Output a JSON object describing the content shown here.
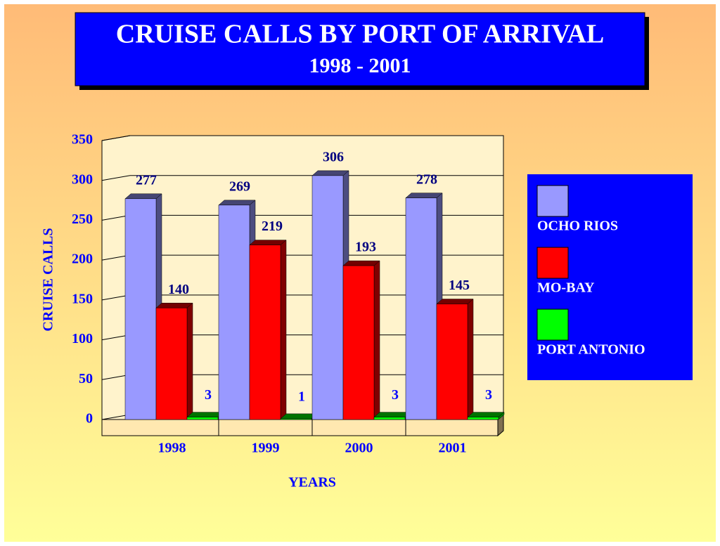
{
  "chart_data": {
    "type": "bar",
    "title": "CRUISE CALLS BY PORT OF ARRIVAL",
    "subtitle": "1998 - 2001",
    "categories": [
      "1998",
      "1999",
      "2000",
      "2001"
    ],
    "series": [
      {
        "name": "OCHO RIOS",
        "color": "#9999ff",
        "values": [
          277,
          269,
          306,
          278
        ]
      },
      {
        "name": "MO-BAY",
        "color": "#ff0000",
        "values": [
          140,
          219,
          193,
          145
        ]
      },
      {
        "name": "PORT ANTONIO",
        "color": "#00ff00",
        "values": [
          3,
          1,
          3,
          3
        ]
      }
    ],
    "ylim": [
      0,
      350
    ],
    "yticks": [
      0,
      50,
      100,
      150,
      200,
      250,
      300,
      350
    ],
    "grid": true,
    "xlabel": "YEARS",
    "ylabel": "CRUISE CALLS",
    "legend": "right"
  }
}
